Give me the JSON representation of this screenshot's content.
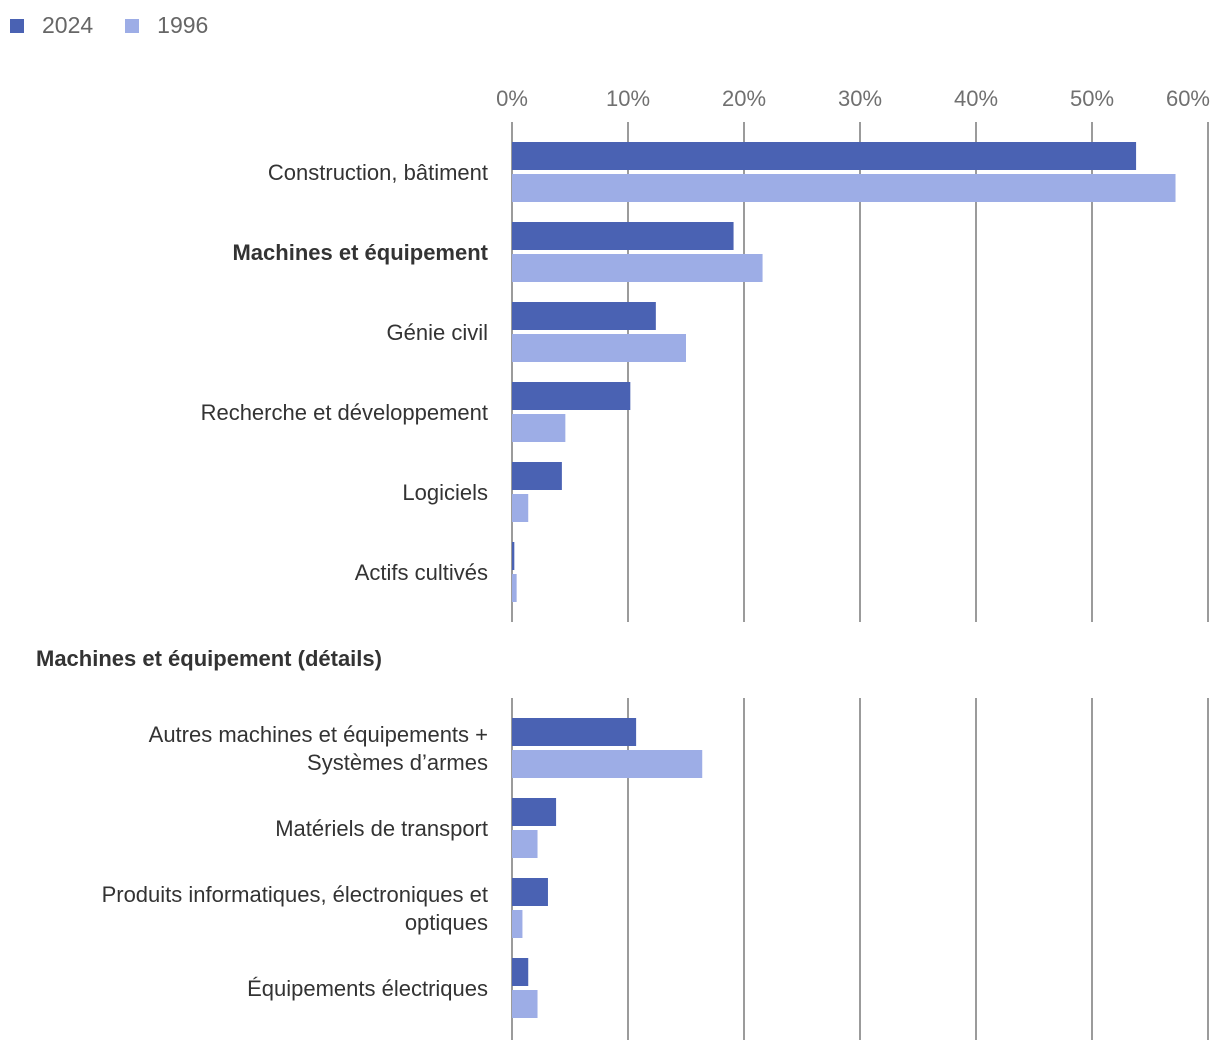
{
  "legend": {
    "items": [
      {
        "label": "2024",
        "color": "#4a62b3"
      },
      {
        "label": "1996",
        "color": "#9dade6"
      }
    ]
  },
  "colors": {
    "series_2024": "#4a62b3",
    "series_1996": "#9dade6",
    "gridline": "#7a7a7a"
  },
  "section_title": "Machines et équipement (détails)",
  "chart_data": [
    {
      "type": "bar",
      "orientation": "horizontal",
      "title": "",
      "xlabel": "",
      "ylabel": "",
      "xlim": [
        0,
        60
      ],
      "x_ticks": [
        0,
        10,
        20,
        30,
        40,
        50,
        60
      ],
      "x_tick_labels": [
        "0%",
        "10%",
        "20%",
        "30%",
        "40%",
        "50%",
        "60%"
      ],
      "grid": true,
      "legend_position": "top-left",
      "categories": [
        "Construction, bâtiment",
        "Machines et équipement",
        "Génie civil",
        "Recherche et développement",
        "Logiciels",
        "Actifs cultivés"
      ],
      "bold_categories": [
        "Machines et équipement"
      ],
      "series": [
        {
          "name": "2024",
          "values": [
            53.8,
            19.1,
            12.4,
            10.2,
            4.3,
            0.2
          ]
        },
        {
          "name": "1996",
          "values": [
            57.2,
            21.6,
            15.0,
            4.6,
            1.4,
            0.4
          ]
        }
      ]
    },
    {
      "type": "bar",
      "orientation": "horizontal",
      "title": "Machines et équipement (détails)",
      "xlabel": "",
      "ylabel": "",
      "xlim": [
        0,
        60
      ],
      "x_ticks": [
        0,
        10,
        20,
        30,
        40,
        50,
        60
      ],
      "grid": true,
      "categories": [
        [
          "Autres machines et équipements +",
          "Systèmes d’armes"
        ],
        [
          "Matériels de transport"
        ],
        [
          "Produits informatiques, électroniques et",
          "optiques"
        ],
        [
          "Équipements électriques"
        ]
      ],
      "series": [
        {
          "name": "2024",
          "values": [
            10.7,
            3.8,
            3.1,
            1.4
          ]
        },
        {
          "name": "1996",
          "values": [
            16.4,
            2.2,
            0.9,
            2.2
          ]
        }
      ]
    }
  ]
}
